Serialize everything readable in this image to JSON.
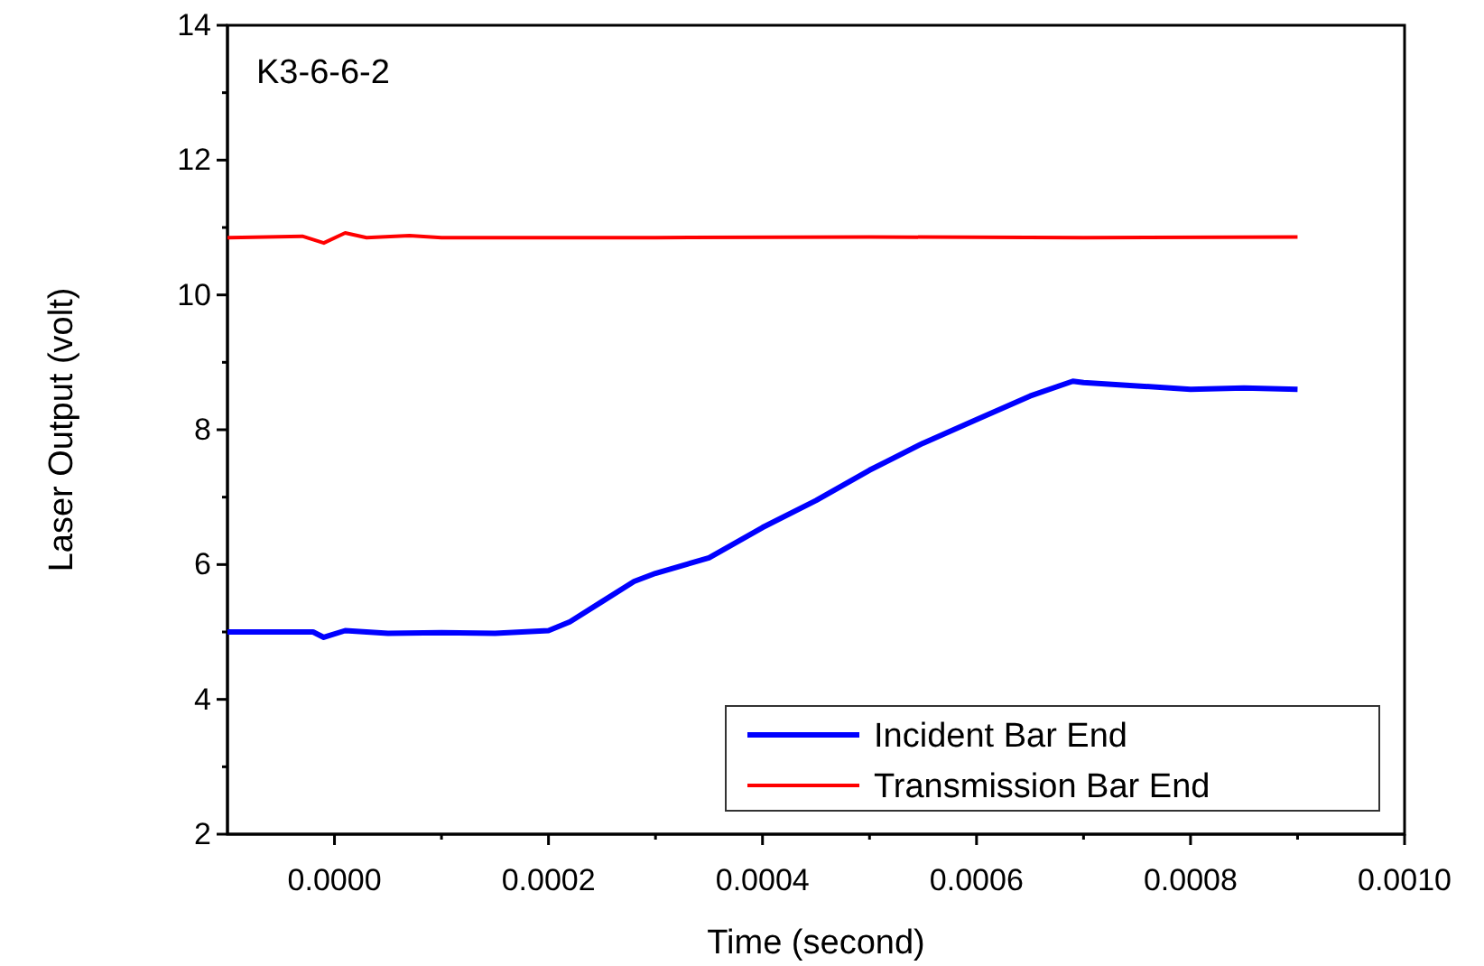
{
  "chart_data": {
    "type": "line",
    "xlabel": "Time (second)",
    "ylabel": "Laser Output (volt)",
    "annotations": [
      "K3-6-6-2"
    ],
    "xlim": [
      -0.0001,
      0.001
    ],
    "xticks": [
      {
        "value": 0,
        "label": "0.0000"
      },
      {
        "value": 0.0001,
        "label": null
      },
      {
        "value": 0.0002,
        "label": "0.0002"
      },
      {
        "value": 0.0003,
        "label": null
      },
      {
        "value": 0.0004,
        "label": "0.0004"
      },
      {
        "value": 0.0005,
        "label": null
      },
      {
        "value": 0.0006,
        "label": "0.0006"
      },
      {
        "value": 0.0007,
        "label": null
      },
      {
        "value": 0.0008,
        "label": "0.0008"
      },
      {
        "value": 0.0009,
        "label": null
      },
      {
        "value": 0.001,
        "label": "0.0010"
      }
    ],
    "ylim": [
      2,
      14
    ],
    "yticks": [
      2,
      {
        "value": 3,
        "label": null
      },
      4,
      {
        "value": 5,
        "label": null
      },
      6,
      {
        "value": 7,
        "label": null
      },
      8,
      {
        "value": 9,
        "label": null
      },
      10,
      {
        "value": 11,
        "label": null
      },
      12,
      {
        "value": 13,
        "label": null
      },
      14
    ],
    "grid": false,
    "legend": "bottom right",
    "marker": "none",
    "line_style": "solid",
    "series": [
      {
        "name": "Incident Bar End",
        "color": "#0000ff",
        "x": [
          -0.0001,
          -2e-05,
          -1e-05,
          1e-05,
          5e-05,
          0.0001,
          0.00015,
          0.0002,
          0.00022,
          0.00025,
          0.00028,
          0.0003,
          0.00035,
          0.0004,
          0.00045,
          0.0005,
          0.00055,
          0.0006,
          0.00065,
          0.00069,
          0.0007,
          0.00075,
          0.0008,
          0.00085,
          0.0009
        ],
        "values": [
          5.0,
          5.0,
          4.92,
          5.02,
          4.98,
          4.99,
          4.98,
          5.02,
          5.15,
          5.45,
          5.75,
          5.87,
          6.1,
          6.55,
          6.95,
          7.4,
          7.8,
          8.15,
          8.5,
          8.72,
          8.7,
          8.65,
          8.6,
          8.62,
          8.6
        ]
      },
      {
        "name": "Transmission Bar End",
        "color": "#ff0000",
        "x": [
          -0.0001,
          -3e-05,
          -1e-05,
          1e-05,
          3e-05,
          7e-05,
          0.0001,
          0.0003,
          0.0005,
          0.0007,
          0.0009
        ],
        "values": [
          10.85,
          10.87,
          10.77,
          10.92,
          10.85,
          10.88,
          10.85,
          10.85,
          10.86,
          10.85,
          10.86
        ]
      }
    ]
  }
}
